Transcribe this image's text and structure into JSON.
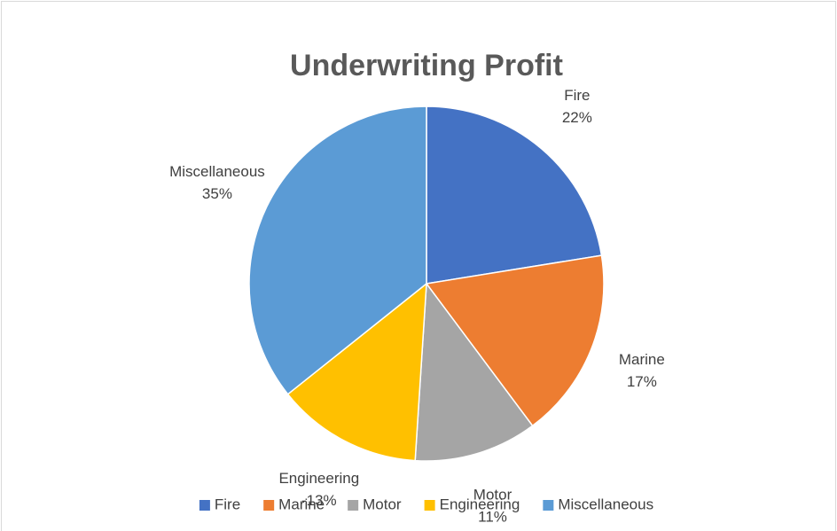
{
  "chart_data": {
    "type": "pie",
    "title": "Underwriting Profit",
    "categories": [
      "Fire",
      "Marine",
      "Motor",
      "Engineering",
      "Miscellaneous"
    ],
    "values": [
      22,
      17,
      11,
      -13,
      35
    ],
    "value_labels": [
      "22%",
      "17%",
      "11%",
      "-13%",
      "35%"
    ],
    "colors": [
      "#4472c4",
      "#ed7d31",
      "#a5a5a5",
      "#ffc000",
      "#5b9bd5"
    ],
    "legend": "bottom"
  }
}
